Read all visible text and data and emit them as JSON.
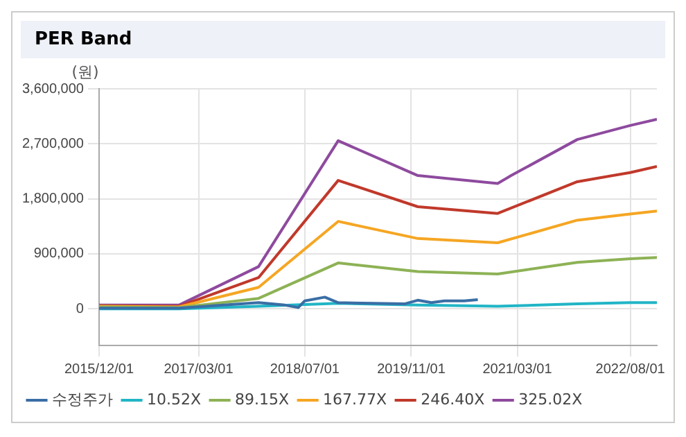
{
  "chart_data": {
    "type": "line",
    "title": "PER Band",
    "ylabel": "(원)",
    "xlim": [
      "2015-12-01",
      "2022-12-01"
    ],
    "xticks": [
      {
        "value": "2015-12-01",
        "label": "2015/12/01"
      },
      {
        "value": "2017-03-01",
        "label": "2017/03/01"
      },
      {
        "value": "2018-07-01",
        "label": "2018/07/01"
      },
      {
        "value": "2019-11-01",
        "label": "2019/11/01"
      },
      {
        "value": "2021-03-01",
        "label": "2021/03/01"
      },
      {
        "value": "2022-08-01",
        "label": "2022/08/01"
      }
    ],
    "ylim": [
      -600000,
      3600000
    ],
    "yticks": [
      {
        "value": 0,
        "label": "0"
      },
      {
        "value": 900000,
        "label": "900,000"
      },
      {
        "value": 1800000,
        "label": "1,800,000"
      },
      {
        "value": 2700000,
        "label": "2,700,000"
      },
      {
        "value": 3600000,
        "label": "3,600,000"
      }
    ],
    "grid": true,
    "legend": "bottom",
    "marker": "none",
    "line_style": "solid",
    "series": [
      {
        "name": "수정주가",
        "color": "#3a6ea5",
        "x": [
          "2015-12",
          "2016-12",
          "2017-12",
          "2018-04",
          "2018-06",
          "2018-07",
          "2018-10",
          "2018-12",
          "2019-10",
          "2019-12",
          "2020-02",
          "2020-04",
          "2020-07",
          "2020-09"
        ],
        "values": [
          10000,
          10000,
          100000,
          60000,
          20000,
          130000,
          190000,
          100000,
          80000,
          140000,
          100000,
          130000,
          130000,
          150000
        ]
      },
      {
        "name": "10.52X",
        "color": "#21b5c6",
        "x": [
          "2015-12",
          "2016-12",
          "2017-12",
          "2018-12",
          "2019-12",
          "2020-12",
          "2021-12",
          "2022-08",
          "2022-12"
        ],
        "values": [
          0,
          0,
          40000,
          90000,
          60000,
          40000,
          80000,
          100000,
          100000
        ]
      },
      {
        "name": "89.15X",
        "color": "#8db255",
        "x": [
          "2015-12",
          "2016-12",
          "2017-12",
          "2018-12",
          "2019-12",
          "2020-12",
          "2021-12",
          "2022-08",
          "2022-12"
        ],
        "values": [
          30000,
          20000,
          170000,
          750000,
          610000,
          570000,
          760000,
          820000,
          840000
        ]
      },
      {
        "name": "167.77X",
        "color": "#f5a623",
        "x": [
          "2015-12",
          "2016-12",
          "2017-12",
          "2018-12",
          "2019-12",
          "2020-12",
          "2021-12",
          "2022-08",
          "2022-12"
        ],
        "values": [
          40000,
          30000,
          350000,
          1430000,
          1150000,
          1080000,
          1450000,
          1550000,
          1600000
        ]
      },
      {
        "name": "246.40X",
        "color": "#c0392b",
        "x": [
          "2015-12",
          "2016-12",
          "2017-12",
          "2018-12",
          "2019-12",
          "2020-12",
          "2021-12",
          "2022-08",
          "2022-12"
        ],
        "values": [
          50000,
          40000,
          510000,
          2100000,
          1670000,
          1560000,
          2080000,
          2230000,
          2330000
        ]
      },
      {
        "name": "325.02X",
        "color": "#8e4a9e",
        "x": [
          "2015-12",
          "2016-12",
          "2017-12",
          "2018-12",
          "2019-12",
          "2020-12",
          "2021-02",
          "2021-12",
          "2022-08",
          "2022-12"
        ],
        "values": [
          60000,
          60000,
          690000,
          2750000,
          2180000,
          2050000,
          2180000,
          2770000,
          3000000,
          3100000
        ]
      }
    ]
  }
}
